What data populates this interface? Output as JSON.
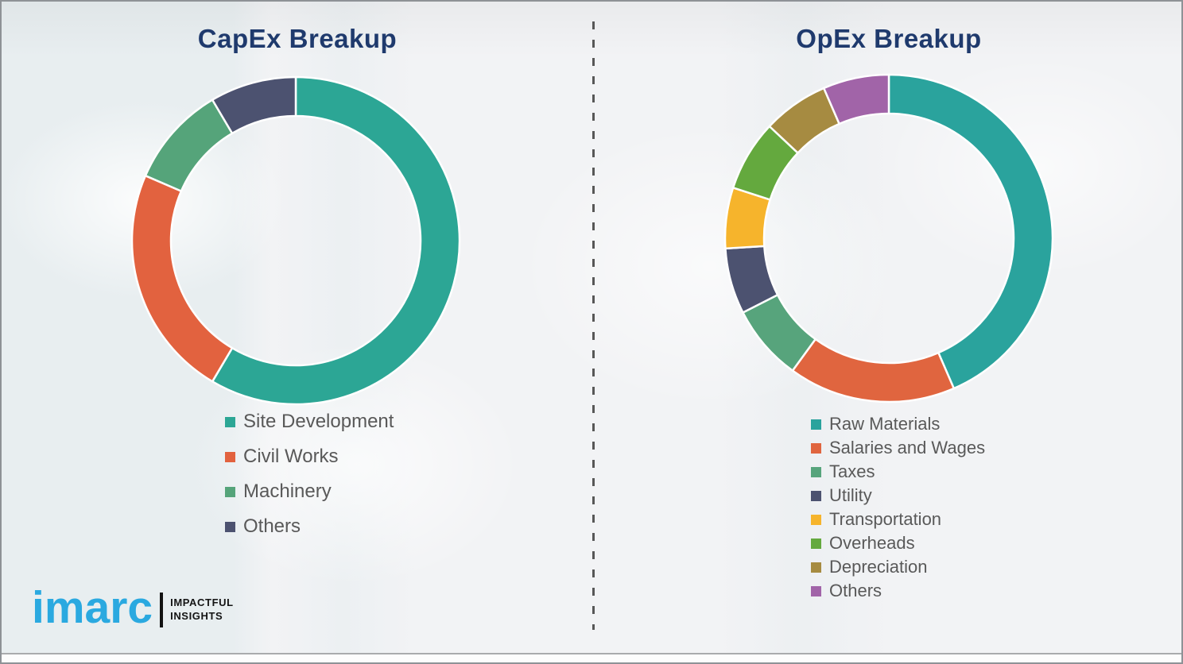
{
  "chart_data": [
    {
      "type": "pie",
      "subtype": "donut",
      "title": "CapEx Breakup",
      "categories": [
        "Site Development",
        "Civil Works",
        "Machinery",
        "Others"
      ],
      "values": [
        58.5,
        23.0,
        10.0,
        8.5
      ],
      "colors": [
        "#2CA695",
        "#E2623F",
        "#55A47A",
        "#4C5270"
      ],
      "units": "percent",
      "start_angle_deg_from_top": 0,
      "direction": "clockwise",
      "legend_position": "below-left",
      "inner_radius_ratio": 0.76
    },
    {
      "type": "pie",
      "subtype": "donut",
      "title": "OpEx Breakup",
      "categories": [
        "Raw Materials",
        "Salaries and Wages",
        "Taxes",
        "Utility",
        "Transportation",
        "Overheads",
        "Depreciation",
        "Others"
      ],
      "values": [
        43.5,
        16.5,
        7.5,
        6.5,
        6.0,
        7.0,
        6.5,
        6.5
      ],
      "colors": [
        "#2AA39D",
        "#E0653F",
        "#57A47C",
        "#4C5270",
        "#F6B42C",
        "#64A93E",
        "#A68B41",
        "#A164A8"
      ],
      "units": "percent",
      "start_angle_deg_from_top": 0,
      "direction": "clockwise",
      "legend_position": "below-left",
      "inner_radius_ratio": 0.76
    }
  ],
  "titles": {
    "title_color": "#1F3A6D"
  },
  "logo": {
    "brand": "imarc",
    "tagline_line1": "IMPACTFUL",
    "tagline_line2": "INSIGHTS",
    "brand_color": "#2AA9E0"
  }
}
